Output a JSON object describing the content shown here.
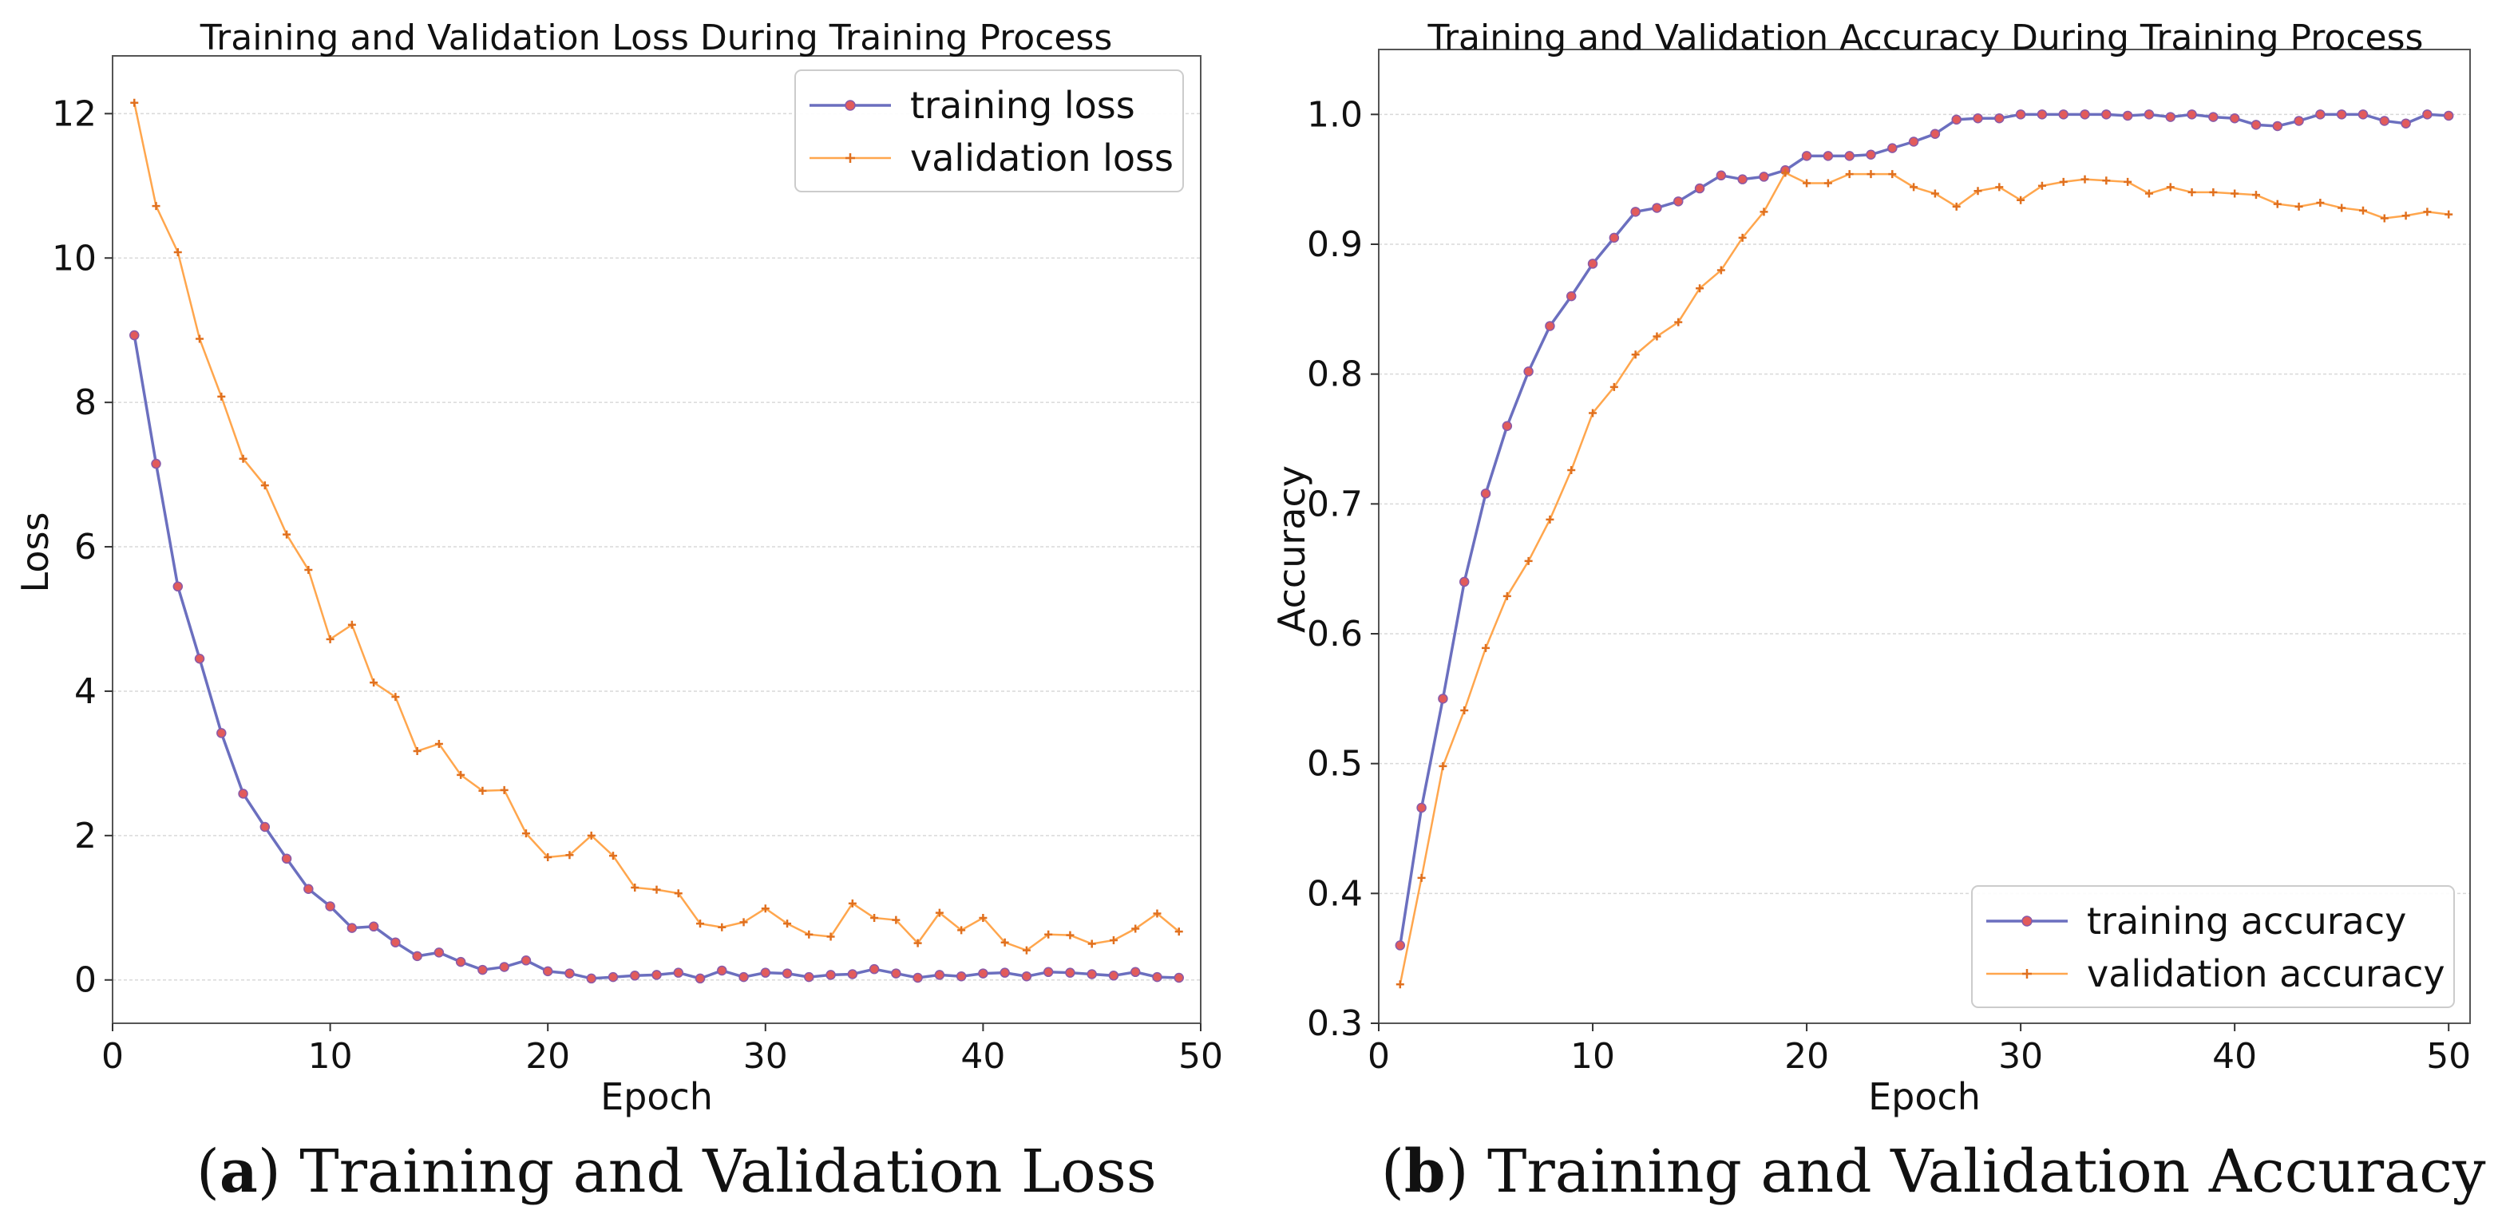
{
  "colors": {
    "training": "#6b6fbf",
    "validation": "#ffa64d",
    "marker": "#e25b5b"
  },
  "chart_data": [
    {
      "type": "line",
      "title": "Training and Validation Loss During Training Process",
      "xlabel": "Epoch",
      "ylabel": "Loss",
      "xlim": [
        0,
        50
      ],
      "ylim": [
        -0.6,
        12.8
      ],
      "xticks": [
        0,
        10,
        20,
        30,
        40,
        50
      ],
      "yticks": [
        0,
        2,
        4,
        6,
        8,
        10,
        12
      ],
      "grid": true,
      "legend_position": "top-right",
      "caption_letter": "a",
      "caption_text": "Training and Validation Loss",
      "x": [
        1,
        2,
        3,
        4,
        5,
        6,
        7,
        8,
        9,
        10,
        11,
        12,
        13,
        14,
        15,
        16,
        17,
        18,
        19,
        20,
        21,
        22,
        23,
        24,
        25,
        26,
        27,
        28,
        29,
        30,
        31,
        32,
        33,
        34,
        35,
        36,
        37,
        38,
        39,
        40,
        41,
        42,
        43,
        44,
        45,
        46,
        47,
        48,
        49
      ],
      "series": [
        {
          "name": "training loss",
          "marker": "circle",
          "values": [
            8.93,
            7.15,
            5.45,
            4.45,
            3.42,
            2.58,
            2.12,
            1.68,
            1.26,
            1.02,
            0.72,
            0.74,
            0.52,
            0.33,
            0.38,
            0.25,
            0.14,
            0.18,
            0.27,
            0.12,
            0.09,
            0.02,
            0.04,
            0.06,
            0.07,
            0.1,
            0.02,
            0.13,
            0.04,
            0.1,
            0.09,
            0.04,
            0.07,
            0.08,
            0.15,
            0.09,
            0.03,
            0.07,
            0.05,
            0.09,
            0.1,
            0.05,
            0.11,
            0.1,
            0.08,
            0.06,
            0.11,
            0.04,
            0.03
          ]
        },
        {
          "name": "validation loss",
          "marker": "plus",
          "values": [
            12.15,
            10.72,
            10.08,
            8.88,
            8.08,
            7.22,
            6.85,
            6.17,
            5.68,
            4.72,
            4.92,
            4.12,
            3.92,
            3.17,
            3.27,
            2.84,
            2.62,
            2.63,
            2.03,
            1.7,
            1.73,
            2.0,
            1.72,
            1.28,
            1.25,
            1.2,
            0.78,
            0.73,
            0.8,
            0.99,
            0.78,
            0.63,
            0.6,
            1.06,
            0.86,
            0.83,
            0.51,
            0.93,
            0.69,
            0.86,
            0.52,
            0.41,
            0.63,
            0.62,
            0.5,
            0.55,
            0.71,
            0.92,
            0.67
          ]
        }
      ]
    },
    {
      "type": "line",
      "title": "Training and Validation Accuracy During Training Process",
      "xlabel": "Epoch",
      "ylabel": "Accuracy",
      "xlim": [
        0,
        51
      ],
      "ylim": [
        0.3,
        1.05
      ],
      "xticks": [
        0,
        10,
        20,
        30,
        40,
        50
      ],
      "yticks": [
        "0.3",
        "0.4",
        "0.5",
        "0.6",
        "0.7",
        "0.8",
        "0.9",
        "1.0"
      ],
      "grid": true,
      "legend_position": "bottom-right",
      "caption_letter": "b",
      "caption_text": "Training and Validation Accuracy",
      "x": [
        1,
        2,
        3,
        4,
        5,
        6,
        7,
        8,
        9,
        10,
        11,
        12,
        13,
        14,
        15,
        16,
        17,
        18,
        19,
        20,
        21,
        22,
        23,
        24,
        25,
        26,
        27,
        28,
        29,
        30,
        31,
        32,
        33,
        34,
        35,
        36,
        37,
        38,
        39,
        40,
        41,
        42,
        43,
        44,
        45,
        46,
        47,
        48,
        49,
        50
      ],
      "series": [
        {
          "name": "training accuracy",
          "marker": "circle",
          "values": [
            0.36,
            0.466,
            0.55,
            0.64,
            0.708,
            0.76,
            0.802,
            0.837,
            0.86,
            0.885,
            0.905,
            0.925,
            0.928,
            0.933,
            0.943,
            0.953,
            0.95,
            0.952,
            0.957,
            0.968,
            0.968,
            0.968,
            0.969,
            0.974,
            0.979,
            0.985,
            0.996,
            0.997,
            0.997,
            1.0,
            1.0,
            1.0,
            1.0,
            1.0,
            0.999,
            1.0,
            0.998,
            1.0,
            0.998,
            0.997,
            0.992,
            0.991,
            0.995,
            1.0,
            1.0,
            1.0,
            0.995,
            0.993,
            1.0,
            0.999
          ]
        },
        {
          "name": "validation accuracy",
          "marker": "plus",
          "values": [
            0.33,
            0.412,
            0.498,
            0.541,
            0.589,
            0.629,
            0.656,
            0.688,
            0.726,
            0.77,
            0.79,
            0.815,
            0.829,
            0.84,
            0.866,
            0.88,
            0.905,
            0.925,
            0.955,
            0.947,
            0.947,
            0.954,
            0.954,
            0.954,
            0.944,
            0.939,
            0.929,
            0.941,
            0.944,
            0.934,
            0.945,
            0.948,
            0.95,
            0.949,
            0.948,
            0.939,
            0.944,
            0.94,
            0.94,
            0.939,
            0.938,
            0.931,
            0.929,
            0.932,
            0.928,
            0.926,
            0.92,
            0.922,
            0.925,
            0.923
          ]
        }
      ]
    }
  ]
}
